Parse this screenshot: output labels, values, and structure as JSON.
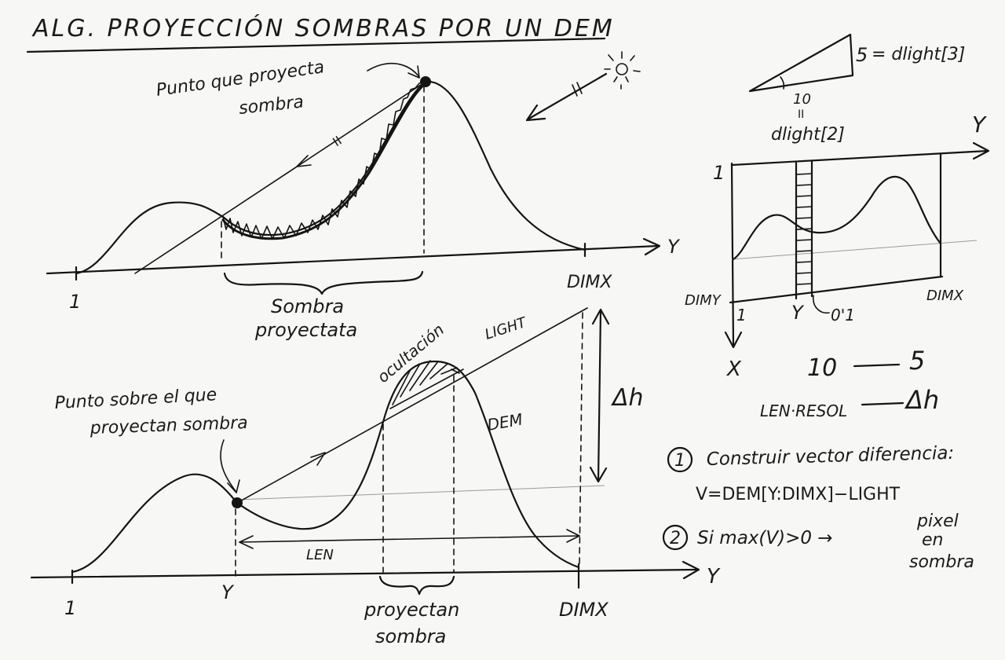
{
  "title": "ALG. PROYECCIÓN SOMBRAS POR UN DEM",
  "top_diagram": {
    "caster_label_line1": "Punto que proyecta",
    "caster_label_line2": "sombra",
    "parallel_mark": "II",
    "axis_label": "Y",
    "start_tick": "1",
    "end_tick": "DIMX",
    "shadow_label_line1": "Sombra",
    "shadow_label_line2": "proyectata"
  },
  "bottom_diagram": {
    "receiver_label_line1": "Punto sobre el que",
    "receiver_label_line2": "proyectan sombra",
    "occlusion_label": "ocultación",
    "light_label": "LIGHT",
    "dem_label": "DEM",
    "delta_h_label": "Δh",
    "len_label": "LEN",
    "axis_label": "Y",
    "start_tick": "1",
    "y_tick": "Y",
    "end_tick": "DIMX",
    "casting_label_line1": "proyectan",
    "casting_label_line2": "sombra"
  },
  "light_triangle": {
    "height_value": "5",
    "height_equals": "= dlight[3]",
    "base_value": "10",
    "base_marks": "II",
    "base_label": "dlight[2]"
  },
  "map_inset": {
    "y_axis_label": "Y",
    "top_tick": "1",
    "dimy_label": "DIMY",
    "corner_tick": "1",
    "y_tick": "Y",
    "step_label": "0'1",
    "dimx_label": "DIMX",
    "x_axis_label": "X"
  },
  "ratio": {
    "row1_left": "10",
    "row1_right": "5",
    "row2_left": "LEN·RESOL",
    "row2_right": "Δh"
  },
  "steps": [
    {
      "number": "1",
      "text": "Construir vector diferencia:",
      "formula": "V=DEM[Y:DIMX]−LIGHT"
    },
    {
      "number": "2",
      "text": "Si  max(V)>0 →",
      "result_line1": "pixel",
      "result_line2": "en",
      "result_line3": "sombra"
    }
  ],
  "colors": {
    "ink": "#141414",
    "paper": "#f7f7f5",
    "faint_line": "#9a9a9a"
  }
}
